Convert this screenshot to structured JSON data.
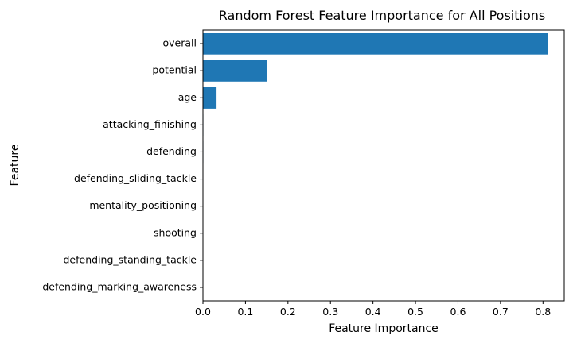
{
  "chart_data": {
    "type": "bar",
    "orientation": "horizontal",
    "title": "Random Forest Feature Importance for All Positions",
    "xlabel": "Feature Importance",
    "ylabel": "Feature",
    "categories": [
      "overall",
      "potential",
      "age",
      "attacking_finishing",
      "defending",
      "defending_sliding_tackle",
      "mentality_positioning",
      "shooting",
      "defending_standing_tackle",
      "defending_marking_awareness"
    ],
    "values": [
      0.812,
      0.151,
      0.032,
      0.001,
      0.001,
      0.0008,
      0.0007,
      0.0006,
      0.0005,
      0.0004
    ],
    "xlim": [
      0,
      0.85
    ],
    "xticks": [
      "0.0",
      "0.1",
      "0.2",
      "0.3",
      "0.4",
      "0.5",
      "0.6",
      "0.7",
      "0.8"
    ],
    "xtick_values": [
      0,
      0.1,
      0.2,
      0.3,
      0.4,
      0.5,
      0.6,
      0.7,
      0.8
    ],
    "grid": false,
    "bar_color": "#1f77b4"
  }
}
